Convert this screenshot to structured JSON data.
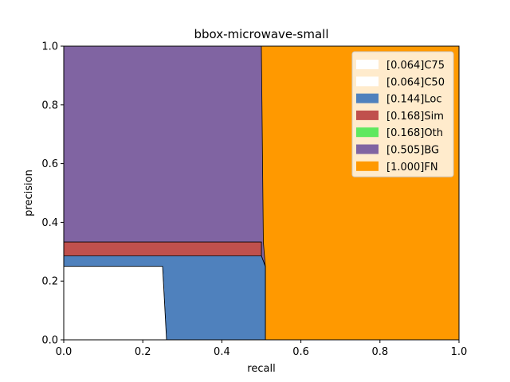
{
  "chart_data": {
    "type": "area",
    "title": "bbox-microwave-small",
    "xlabel": "recall",
    "ylabel": "precision",
    "xlim": [
      0,
      1
    ],
    "ylim": [
      0,
      1
    ],
    "x_ticks": [
      "0.0",
      "0.2",
      "0.4",
      "0.6",
      "0.8",
      "1.0"
    ],
    "y_ticks": [
      "0.0",
      "0.2",
      "0.4",
      "0.6",
      "0.8",
      "1.0"
    ],
    "grid": false,
    "legend_position": "top-right",
    "series": [
      {
        "name": "[1.000]FN",
        "color": "#FF9900",
        "points": [
          [
            0,
            1
          ],
          [
            1,
            1
          ]
        ]
      },
      {
        "name": "[0.505]BG",
        "color": "#8064A2",
        "points": [
          [
            0,
            1
          ],
          [
            0.5,
            1
          ],
          [
            0.505,
            0.333
          ],
          [
            0.51,
            0.25
          ],
          [
            0.51,
            0
          ]
        ]
      },
      {
        "name": "[0.168]Oth",
        "color": "#5FE85F",
        "points": [
          [
            0,
            0.333
          ],
          [
            0.5,
            0.333
          ],
          [
            0.5,
            0.286
          ],
          [
            0.51,
            0.25
          ],
          [
            0.51,
            0
          ]
        ]
      },
      {
        "name": "[0.168]Sim",
        "color": "#C0504D",
        "points": [
          [
            0,
            0.333
          ],
          [
            0.5,
            0.333
          ],
          [
            0.5,
            0.286
          ],
          [
            0.51,
            0.25
          ],
          [
            0.51,
            0
          ]
        ]
      },
      {
        "name": "[0.144]Loc",
        "color": "#4F81BD",
        "points": [
          [
            0,
            0.286
          ],
          [
            0.5,
            0.286
          ],
          [
            0.51,
            0.25
          ],
          [
            0.51,
            0
          ]
        ]
      },
      {
        "name": "[0.064]C50",
        "color": "#FFFFFF",
        "points": [
          [
            0,
            0.25
          ],
          [
            0.25,
            0.25
          ],
          [
            0.26,
            0
          ]
        ]
      },
      {
        "name": "[0.064]C75",
        "color": "#FFFFFF",
        "points": [
          [
            0,
            0.25
          ],
          [
            0.25,
            0.25
          ],
          [
            0.26,
            0
          ]
        ]
      }
    ],
    "legend_order": [
      "[0.064]C75",
      "[0.064]C50",
      "[0.144]Loc",
      "[0.168]Sim",
      "[0.168]Oth",
      "[0.505]BG",
      "[1.000]FN"
    ]
  }
}
